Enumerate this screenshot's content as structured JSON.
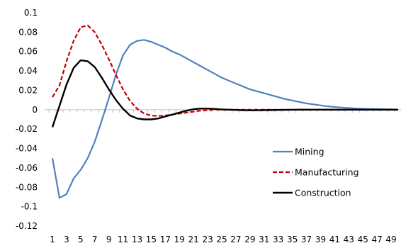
{
  "chart_data": {
    "type": "line",
    "title": "",
    "xlabel": "",
    "ylabel": "",
    "x": [
      1,
      2,
      3,
      4,
      5,
      6,
      7,
      8,
      9,
      10,
      11,
      12,
      13,
      14,
      15,
      16,
      17,
      18,
      19,
      20,
      21,
      22,
      23,
      24,
      25,
      26,
      27,
      28,
      29,
      30,
      31,
      32,
      33,
      34,
      35,
      36,
      37,
      38,
      39,
      40,
      41,
      42,
      43,
      44,
      45,
      46,
      47,
      48,
      49,
      50
    ],
    "xtick_labels": [
      "1",
      "3",
      "5",
      "7",
      "9",
      "11",
      "13",
      "15",
      "17",
      "19",
      "21",
      "23",
      "25",
      "27",
      "29",
      "31",
      "33",
      "35",
      "37",
      "39",
      "41",
      "43",
      "45",
      "47",
      "49"
    ],
    "ylim": [
      -0.12,
      0.1
    ],
    "ytick_labels": [
      "0.1",
      "0.08",
      "0.06",
      "0.04",
      "0.02",
      "0",
      "-0.02",
      "-0.04",
      "-0.06",
      "-0.08",
      "-0.1",
      "-0.12"
    ],
    "ytick_values": [
      0.1,
      0.08,
      0.06,
      0.04,
      0.02,
      0,
      -0.02,
      -0.04,
      -0.06,
      -0.08,
      -0.1,
      -0.12
    ],
    "grid": false,
    "legend_position": "right",
    "series": [
      {
        "name": "Mining",
        "color": "#4f81bd",
        "dash": "solid",
        "values": [
          -0.05,
          -0.091,
          -0.087,
          -0.071,
          -0.062,
          -0.05,
          -0.033,
          -0.011,
          0.012,
          0.036,
          0.056,
          0.067,
          0.071,
          0.072,
          0.07,
          0.067,
          0.064,
          0.06,
          0.057,
          0.053,
          0.049,
          0.045,
          0.041,
          0.037,
          0.033,
          0.03,
          0.027,
          0.024,
          0.021,
          0.019,
          0.017,
          0.015,
          0.013,
          0.011,
          0.0095,
          0.008,
          0.0065,
          0.0055,
          0.0045,
          0.0035,
          0.0028,
          0.0022,
          0.0017,
          0.0013,
          0.001,
          0.0008,
          0.0006,
          0.0004,
          0.0003,
          0.0002
        ]
      },
      {
        "name": "Manufacturing",
        "color": "#c00000",
        "dash": "dashed",
        "values": [
          0.013,
          0.025,
          0.05,
          0.071,
          0.085,
          0.087,
          0.08,
          0.067,
          0.052,
          0.036,
          0.021,
          0.009,
          0.001,
          -0.004,
          -0.006,
          -0.0065,
          -0.006,
          -0.005,
          -0.004,
          -0.003,
          -0.002,
          -0.001,
          -0.0005,
          0,
          0,
          0,
          0,
          0,
          0,
          0,
          0,
          0,
          0,
          0,
          0,
          0,
          0,
          0,
          0,
          0,
          0,
          0,
          0,
          0,
          0,
          0,
          0,
          0,
          0,
          0
        ]
      },
      {
        "name": "Construction",
        "color": "#000000",
        "dash": "solid",
        "values": [
          -0.018,
          0.004,
          0.026,
          0.043,
          0.051,
          0.05,
          0.044,
          0.033,
          0.021,
          0.01,
          0.001,
          -0.006,
          -0.009,
          -0.01,
          -0.01,
          -0.009,
          -0.007,
          -0.005,
          -0.003,
          -0.001,
          0.0005,
          0.0012,
          0.0012,
          0.0008,
          0.0003,
          0,
          -0.0003,
          -0.0005,
          -0.0006,
          -0.0006,
          -0.0005,
          -0.0004,
          -0.0003,
          -0.0002,
          -0.0001,
          0,
          0,
          0,
          0,
          0,
          0,
          0,
          0,
          0,
          0,
          0,
          0,
          0,
          0,
          0
        ]
      }
    ]
  }
}
